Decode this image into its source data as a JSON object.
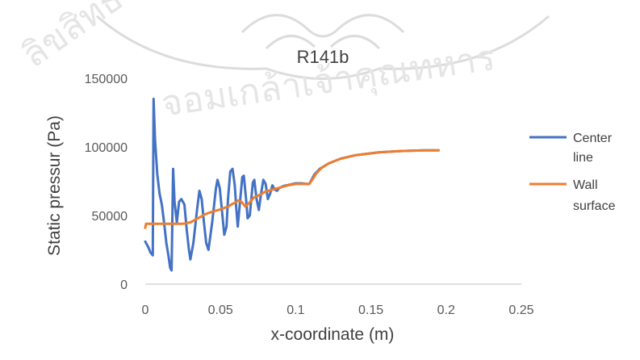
{
  "chart_data": {
    "type": "line",
    "title": "R141b",
    "xlabel": "x-coordinate (m)",
    "ylabel": "Static pressur (Pa)",
    "xlim": [
      0,
      0.25
    ],
    "ylim": [
      0,
      150000
    ],
    "x_ticks": [
      "0",
      "0.05",
      "0.1",
      "0.15",
      "0.2",
      "0.25"
    ],
    "y_ticks": [
      "0",
      "50000",
      "100000",
      "150000"
    ],
    "grid": false,
    "legend_position": "right",
    "series": [
      {
        "name": "Center line",
        "color": "#4472C4",
        "points": [
          [
            0,
            31000
          ],
          [
            0.002,
            27000
          ],
          [
            0.0035,
            23000
          ],
          [
            0.005,
            21000
          ],
          [
            0.0055,
            135000
          ],
          [
            0.0065,
            105000
          ],
          [
            0.008,
            80000
          ],
          [
            0.0095,
            66000
          ],
          [
            0.011,
            58000
          ],
          [
            0.0125,
            45000
          ],
          [
            0.014,
            30000
          ],
          [
            0.0155,
            20000
          ],
          [
            0.0165,
            12000
          ],
          [
            0.0175,
            10000
          ],
          [
            0.0185,
            84000
          ],
          [
            0.0195,
            60000
          ],
          [
            0.021,
            45000
          ],
          [
            0.0225,
            60000
          ],
          [
            0.024,
            62000
          ],
          [
            0.026,
            58000
          ],
          [
            0.0275,
            40000
          ],
          [
            0.029,
            25000
          ],
          [
            0.03,
            18000
          ],
          [
            0.032,
            30000
          ],
          [
            0.0345,
            55000
          ],
          [
            0.036,
            68000
          ],
          [
            0.0375,
            62000
          ],
          [
            0.039,
            45000
          ],
          [
            0.0405,
            30000
          ],
          [
            0.042,
            25000
          ],
          [
            0.0445,
            45000
          ],
          [
            0.047,
            70000
          ],
          [
            0.048,
            76000
          ],
          [
            0.0495,
            70000
          ],
          [
            0.051,
            53000
          ],
          [
            0.0525,
            36000
          ],
          [
            0.054,
            42000
          ],
          [
            0.055,
            62000
          ],
          [
            0.0565,
            82000
          ],
          [
            0.058,
            84000
          ],
          [
            0.0595,
            72000
          ],
          [
            0.0605,
            55000
          ],
          [
            0.0615,
            42000
          ],
          [
            0.063,
            60000
          ],
          [
            0.0645,
            78000
          ],
          [
            0.0655,
            79000
          ],
          [
            0.067,
            62000
          ],
          [
            0.068,
            48000
          ],
          [
            0.0695,
            50000
          ],
          [
            0.0715,
            74000
          ],
          [
            0.0725,
            76000
          ],
          [
            0.074,
            62000
          ],
          [
            0.0755,
            54000
          ],
          [
            0.077,
            66000
          ],
          [
            0.0785,
            76000
          ],
          [
            0.08,
            73000
          ],
          [
            0.0815,
            62000
          ],
          [
            0.083,
            66000
          ],
          [
            0.0845,
            72000
          ],
          [
            0.086,
            69000
          ],
          [
            0.0875,
            68000
          ],
          [
            0.089,
            70000
          ],
          [
            0.092,
            71500
          ],
          [
            0.096,
            72500
          ],
          [
            0.1,
            73500
          ],
          [
            0.104,
            73500
          ],
          [
            0.107,
            73000
          ],
          [
            0.109,
            73000
          ],
          [
            0.1105,
            76000
          ],
          [
            0.1125,
            80000
          ],
          [
            0.116,
            84000
          ],
          [
            0.122,
            88000
          ],
          [
            0.13,
            91500
          ],
          [
            0.14,
            94000
          ],
          [
            0.155,
            96000
          ],
          [
            0.17,
            97000
          ],
          [
            0.185,
            97500
          ],
          [
            0.195,
            97500
          ]
        ]
      },
      {
        "name": "Wall surface",
        "color": "#ED7D31",
        "points": [
          [
            0,
            41000
          ],
          [
            0.0005,
            44000
          ],
          [
            0.003,
            44000
          ],
          [
            0.01,
            44000
          ],
          [
            0.02,
            44000
          ],
          [
            0.025,
            44000
          ],
          [
            0.03,
            45000
          ],
          [
            0.035,
            48000
          ],
          [
            0.04,
            51000
          ],
          [
            0.045,
            53000
          ],
          [
            0.05,
            54500
          ],
          [
            0.055,
            56500
          ],
          [
            0.058,
            58500
          ],
          [
            0.06,
            59500
          ],
          [
            0.062,
            61000
          ],
          [
            0.064,
            60000
          ],
          [
            0.0665,
            56500
          ],
          [
            0.069,
            59000
          ],
          [
            0.072,
            63000
          ],
          [
            0.076,
            65000
          ],
          [
            0.08,
            67500
          ],
          [
            0.085,
            69000
          ],
          [
            0.09,
            70500
          ],
          [
            0.095,
            72000
          ],
          [
            0.1,
            73000
          ],
          [
            0.105,
            73000
          ],
          [
            0.109,
            73000
          ],
          [
            0.111,
            76000
          ],
          [
            0.1135,
            80500
          ],
          [
            0.117,
            84500
          ],
          [
            0.122,
            88000
          ],
          [
            0.13,
            91500
          ],
          [
            0.14,
            94000
          ],
          [
            0.155,
            96000
          ],
          [
            0.17,
            97000
          ],
          [
            0.185,
            97500
          ],
          [
            0.195,
            97500
          ]
        ]
      }
    ]
  }
}
